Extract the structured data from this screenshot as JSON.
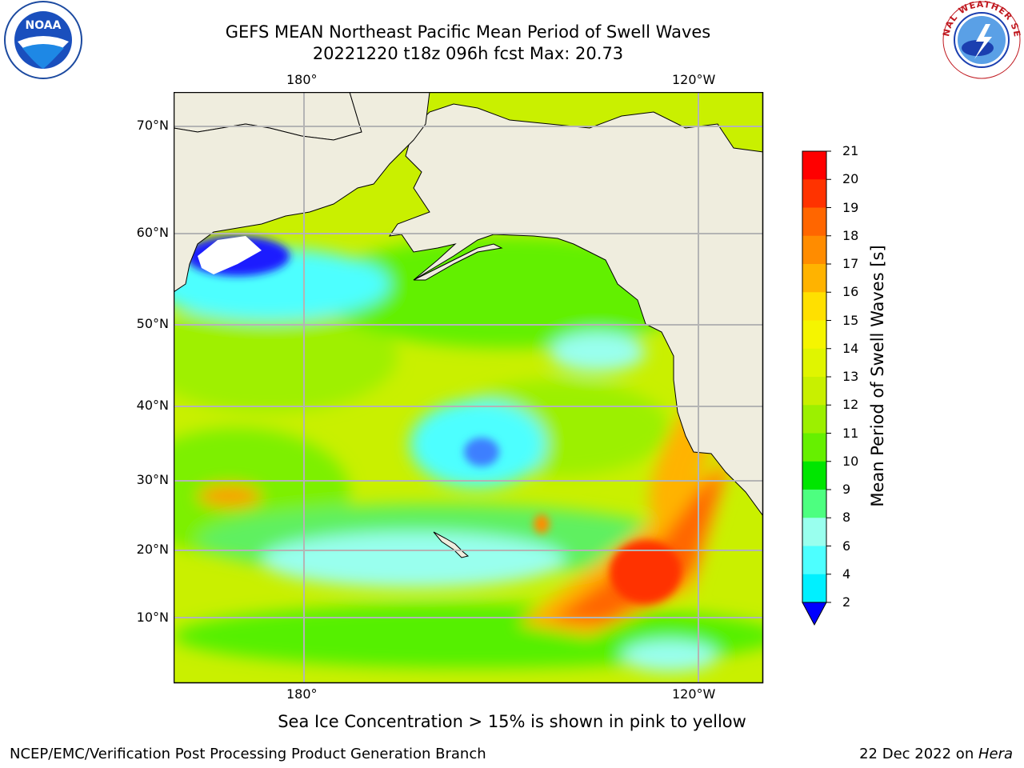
{
  "title": {
    "line1": "GEFS MEAN Northeast Pacific Mean Period of Swell Waves",
    "line2": "20221220 t18z 096h fcst   Max: 20.73"
  },
  "map": {
    "top_lon_labels": [
      "180°",
      "120°W"
    ],
    "bottom_lon_labels": [
      "180°",
      "120°W"
    ],
    "lat_labels": [
      "70°N",
      "60°N",
      "50°N",
      "40°N",
      "30°N",
      "20°N",
      "10°N"
    ],
    "colors": {
      "land": "#efedde",
      "coast": "#000000",
      "grid": "#b4b4b4"
    }
  },
  "colorbar": {
    "label": "Mean Period of Swell Waves [s]",
    "ticks": [
      "21",
      "20",
      "19",
      "18",
      "17",
      "16",
      "15",
      "14",
      "13",
      "12",
      "11",
      "10",
      "9",
      "8",
      "6",
      "4",
      "2"
    ],
    "colors": [
      "#ff0000",
      "#ff3300",
      "#ff6600",
      "#ff8c00",
      "#ffb300",
      "#ffe000",
      "#f5f500",
      "#e0f500",
      "#c8f000",
      "#9cf000",
      "#66f000",
      "#00e600",
      "#4dff80",
      "#99ffee",
      "#4dffff",
      "#00f0ff",
      "#00b4ff",
      "#0070ff",
      "#0000ff"
    ]
  },
  "footer": {
    "note": "Sea Ice Concentration > 15% is shown in pink to yellow",
    "left": "NCEP/EMC/Verification Post Processing Product Generation Branch",
    "right_text": "22 Dec 2022 on ",
    "right_italic": "Hera"
  },
  "logos": {
    "left": "NOAA",
    "right": "NATIONAL WEATHER SERVICE"
  }
}
